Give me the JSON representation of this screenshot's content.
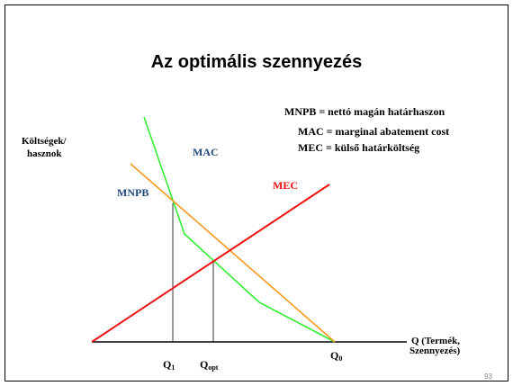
{
  "title": "Az optimális szennyezés",
  "legend": [
    "MNPB = nettó magán határhaszon",
    "MAC = marginal abatement cost",
    "MEC = külső határköltség"
  ],
  "y_axis_label": [
    "Költségek/",
    "hasznok"
  ],
  "x_axis_label": [
    "Q (Termék,",
    "Szennyezés)"
  ],
  "curves": {
    "mac": "MAC",
    "mnpb": "MNPB",
    "mec": "MEC"
  },
  "q_labels": [
    {
      "main": "Q",
      "sub": "1"
    },
    {
      "main": "Q",
      "sub": "opt"
    },
    {
      "main": "Q",
      "sub": "0"
    }
  ],
  "page_number": "93"
}
